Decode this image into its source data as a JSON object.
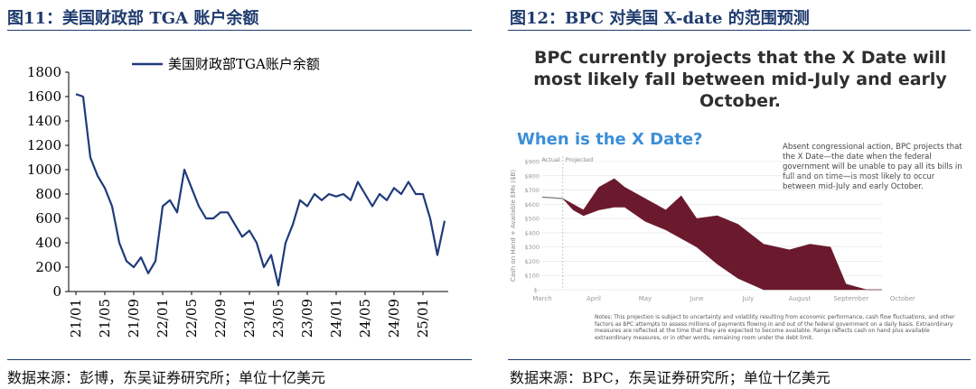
{
  "left": {
    "title": "图11：美国财政部 TGA 账户余额",
    "source": "数据来源：彭博，东吴证券研究所；单位十亿美元"
  },
  "right": {
    "title": "图12：BPC 对美国 X-date 的范围预测",
    "source": "数据来源：BPC，东吴证券研究所；单位十亿美元",
    "headline_1": "BPC currently projects that the X Date will",
    "headline_2": "most likely fall between mid-July and early",
    "headline_3": "October.",
    "question": "When is the X Date?",
    "note": "Absent congressional action, BPC projects that the X Date—the date when the federal government will be unable to pay all its bills in full and on time—is most likely to occur between mid-July and early October.",
    "footnote": "Notes: This projection is subject to uncertainty and volatility resulting from economic performance, cash flow fluctuations, and other factors as BPC attempts to assess millions of payments flowing in and out of the federal government on a daily basis. Extraordinary measures are reflected at the time that they are expected to become available. Range reflects cash on hand plus available extraordinary measures, or in other words, remaining room under the debt limit."
  },
  "chart_data": [
    {
      "type": "line",
      "title": "",
      "legend": "美国财政部TGA账户余额",
      "legend_position": "top",
      "grid": false,
      "ylim": [
        0,
        1800
      ],
      "yticks": [
        0,
        200,
        400,
        600,
        800,
        1000,
        1200,
        1400,
        1600,
        1800
      ],
      "xticks": [
        "21/01",
        "21/05",
        "21/09",
        "22/01",
        "22/05",
        "22/09",
        "23/01",
        "23/05",
        "23/09",
        "24/01",
        "24/05",
        "24/09",
        "25/01"
      ],
      "color": "#1f3b7a",
      "series": [
        {
          "x": [
            "21/01",
            "21/02",
            "21/03",
            "21/04",
            "21/05",
            "21/06",
            "21/07",
            "21/08",
            "21/09",
            "21/10",
            "21/11",
            "21/12",
            "22/01",
            "22/02",
            "22/03",
            "22/04",
            "22/05",
            "22/06",
            "22/07",
            "22/08",
            "22/09",
            "22/10",
            "22/11",
            "22/12",
            "23/01",
            "23/02",
            "23/03",
            "23/04",
            "23/05",
            "23/06",
            "23/07",
            "23/08",
            "23/09",
            "23/10",
            "23/11",
            "23/12",
            "24/01",
            "24/02",
            "24/03",
            "24/04",
            "24/05",
            "24/06",
            "24/07",
            "24/08",
            "24/09",
            "24/10",
            "24/11",
            "24/12",
            "25/01",
            "25/02",
            "25/03",
            "25/04"
          ],
          "values": [
            1620,
            1600,
            1100,
            950,
            850,
            700,
            400,
            250,
            200,
            280,
            150,
            250,
            700,
            750,
            650,
            1000,
            850,
            700,
            600,
            600,
            650,
            650,
            550,
            450,
            500,
            400,
            200,
            300,
            50,
            400,
            550,
            750,
            700,
            800,
            750,
            800,
            780,
            800,
            750,
            900,
            800,
            700,
            800,
            750,
            850,
            800,
            900,
            800,
            800,
            600,
            300,
            580
          ]
        }
      ]
    },
    {
      "type": "area",
      "title": "When is the X Date?",
      "ylabel": "Cash on Hand + Available EMs ($B)",
      "ylim": [
        0,
        900
      ],
      "yticks": [
        "$-",
        "$100",
        "$200",
        "$300",
        "$400",
        "$500",
        "$600",
        "$700",
        "$800",
        "$900"
      ],
      "xticks": [
        "March",
        "April",
        "May",
        "June",
        "July",
        "August",
        "September",
        "October"
      ],
      "annotations": [
        "Actual",
        "Projected"
      ],
      "color": "#6b1a2e",
      "actual": {
        "x": [
          0,
          0.4
        ],
        "values": [
          650,
          640
        ]
      },
      "upper": {
        "x": [
          0.4,
          0.6,
          0.8,
          1.1,
          1.4,
          1.6,
          2.0,
          2.4,
          2.7,
          3.0,
          3.4,
          3.8,
          4.3,
          4.8,
          5.2,
          5.6,
          5.9,
          6.3,
          6.6
        ],
        "values": [
          640,
          600,
          560,
          720,
          780,
          720,
          640,
          560,
          660,
          500,
          520,
          460,
          320,
          280,
          320,
          300,
          40,
          0,
          0
        ]
      },
      "lower": {
        "x": [
          0.4,
          0.6,
          0.8,
          1.1,
          1.4,
          1.6,
          2.0,
          2.4,
          2.7,
          3.0,
          3.4,
          3.8,
          4.3,
          4.8,
          5.2,
          5.6,
          5.9,
          6.3,
          6.6
        ],
        "values": [
          640,
          560,
          520,
          560,
          580,
          580,
          480,
          420,
          360,
          300,
          180,
          80,
          0,
          0,
          0,
          0,
          0,
          0,
          0
        ]
      }
    }
  ]
}
